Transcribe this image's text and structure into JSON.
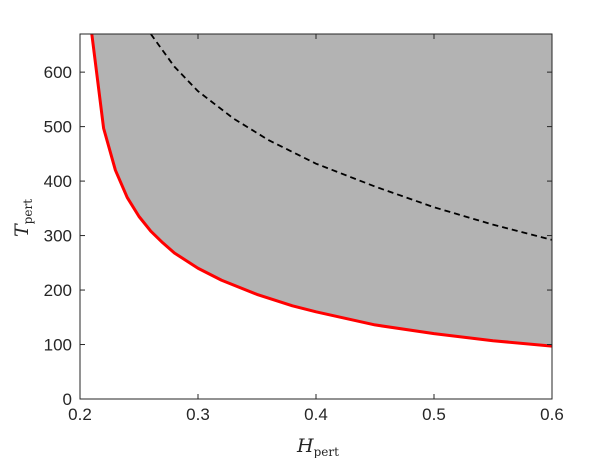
{
  "chart_data": {
    "type": "area",
    "title": "",
    "xlabel": {
      "main": "H",
      "sub": "pert"
    },
    "ylabel": {
      "main": "T",
      "sub": "pert"
    },
    "xlim": [
      0.2,
      0.6
    ],
    "ylim": [
      0,
      670
    ],
    "x_ticks": [
      "0.2",
      "0.3",
      "0.4",
      "0.5",
      "0.6"
    ],
    "y_ticks": [
      "0",
      "100",
      "200",
      "300",
      "400",
      "500",
      "600"
    ],
    "grid": false,
    "colors": {
      "fill": "#b3b3b3",
      "boundary": "#ff0000",
      "dashed": "#000000"
    },
    "series": [
      {
        "style": "solid-red-boundary",
        "x": [
          0.21,
          0.22,
          0.23,
          0.24,
          0.25,
          0.26,
          0.27,
          0.28,
          0.3,
          0.32,
          0.35,
          0.38,
          0.4,
          0.45,
          0.5,
          0.55,
          0.6
        ],
        "y": [
          670,
          497,
          420,
          370,
          335,
          308,
          287,
          268,
          240,
          218,
          192,
          171,
          160,
          136,
          120,
          107,
          97
        ]
      },
      {
        "style": "dashed-black",
        "x": [
          0.26,
          0.28,
          0.3,
          0.33,
          0.36,
          0.4,
          0.45,
          0.5,
          0.55,
          0.6
        ],
        "y": [
          670,
          610,
          565,
          515,
          475,
          432,
          390,
          352,
          320,
          292
        ]
      }
    ]
  }
}
